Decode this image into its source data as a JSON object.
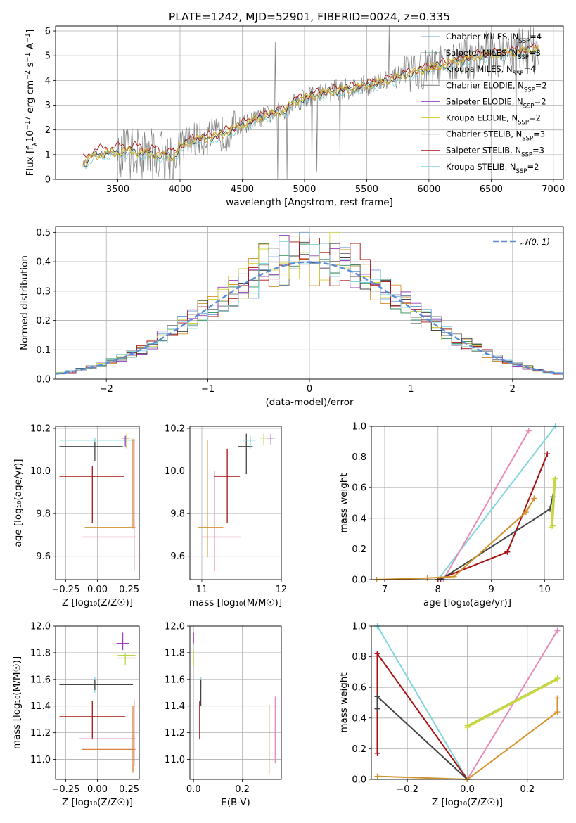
{
  "title": "PLATE=1242, MJD=52901, FIBERID=0024, z=0.335",
  "colors": {
    "Chabrier MILES": "#6f9fd6",
    "Salpeter MILES": "#2e8b57",
    "Kroupa MILES": "#d2932c",
    "Chabrier ELODIE": "#7a7a7a",
    "Salpeter ELODIE": "#9b3fc0",
    "Kroupa ELODIE": "#d4d43a",
    "Chabrier STELIB": "#444444",
    "Salpeter STELIB": "#aa1111",
    "Kroupa STELIB": "#7fd6df",
    "orange": "#d9803a",
    "pink": "#e78ab8",
    "lime": "#b8d64a",
    "normal": "#5b8bd6",
    "data": "#7f7f7f"
  },
  "chart_data": [
    {
      "id": "spectrum",
      "type": "line",
      "title": "PLATE=1242, MJD=52901, FIBERID=0024, z=0.335",
      "xlabel": "wavelength [Angstrom, rest frame]",
      "ylabel": "Flux [f",
      "ylabel_parts": [
        "Flux [f",
        "λ",
        "10",
        "−17",
        " erg cm",
        "−2",
        " s",
        "−1",
        " A",
        "−1",
        "]"
      ],
      "xlim": [
        3000,
        7080
      ],
      "ylim": [
        0,
        6.2
      ],
      "xticks": [
        3500,
        4000,
        4500,
        5000,
        5500,
        6000,
        6500,
        7000
      ],
      "yticks": [
        0,
        1,
        2,
        3,
        4,
        5,
        6
      ],
      "legend_position": "upper-right",
      "legend": [
        {
          "label": "Chabrier MILES, N",
          "sub": "SSP",
          "tail": "=4"
        },
        {
          "label": "Salpeter MILES, N",
          "sub": "SSP",
          "tail": "=3"
        },
        {
          "label": "Kroupa MILES, N",
          "sub": "SSP",
          "tail": "=4"
        },
        {
          "label": "Chabrier ELODIE, N",
          "sub": "SSP",
          "tail": "=2"
        },
        {
          "label": "Salpeter ELODIE, N",
          "sub": "SSP",
          "tail": "=2"
        },
        {
          "label": "Kroupa ELODIE, N",
          "sub": "SSP",
          "tail": "=2"
        },
        {
          "label": "Chabrier STELIB, N",
          "sub": "SSP",
          "tail": "=3"
        },
        {
          "label": "Salpeter STELIB, N",
          "sub": "SSP",
          "tail": "=3"
        },
        {
          "label": "Kroupa STELIB, N",
          "sub": "SSP",
          "tail": "=2"
        }
      ],
      "continuum_points": [
        [
          3220,
          0.6
        ],
        [
          3300,
          0.95
        ],
        [
          3400,
          1.05
        ],
        [
          3600,
          1.15
        ],
        [
          3800,
          1.0
        ],
        [
          3950,
          0.9
        ],
        [
          4000,
          1.3
        ],
        [
          4100,
          1.6
        ],
        [
          4300,
          1.75
        ],
        [
          4500,
          2.2
        ],
        [
          4700,
          2.6
        ],
        [
          4850,
          2.8
        ],
        [
          4900,
          3.1
        ],
        [
          5000,
          3.3
        ],
        [
          5200,
          3.55
        ],
        [
          5400,
          3.7
        ],
        [
          5600,
          3.9
        ],
        [
          5800,
          4.2
        ],
        [
          6000,
          4.5
        ],
        [
          6200,
          4.75
        ],
        [
          6400,
          5.0
        ],
        [
          6600,
          5.1
        ],
        [
          6800,
          5.2
        ],
        [
          6880,
          5.3
        ]
      ]
    },
    {
      "id": "residual-histogram",
      "type": "histogram",
      "xlabel": "(data-model)/error",
      "ylabel": "Normed distribution",
      "xlim": [
        -2.5,
        2.5
      ],
      "ylim": [
        0,
        0.52
      ],
      "xticks": [
        -2,
        -1,
        0,
        1,
        2
      ],
      "yticks": [
        0.0,
        0.1,
        0.2,
        0.3,
        0.4,
        0.5
      ],
      "bin_width": 0.1,
      "legend": "𝒩(0, 1)",
      "legend_position": "upper-right"
    },
    {
      "id": "age-vs-metallicity",
      "type": "errorbar",
      "xlabel": "Z [log₁₀(Z/Z☉)]",
      "ylabel": "age  [log₁₀(age/yr)]",
      "xlim": [
        -0.33,
        0.33
      ],
      "ylim": [
        9.49,
        10.21
      ],
      "xticks": [
        -0.25,
        0.0,
        0.25
      ],
      "yticks": [
        9.6,
        9.8,
        10.0,
        10.2
      ],
      "points": [
        {
          "model": "Kroupa STELIB",
          "x": -0.02,
          "xerr": [
            0.28,
            0.32
          ],
          "y": 10.145,
          "yerr": [
            0.03,
            0.01
          ]
        },
        {
          "model": "Chabrier STELIB",
          "x": -0.02,
          "xerr": [
            0.28,
            0.22
          ],
          "y": 10.115,
          "yerr": [
            0.07,
            0.02
          ]
        },
        {
          "model": "Salpeter STELIB",
          "x": -0.04,
          "xerr": [
            0.26,
            0.25
          ],
          "y": 9.975,
          "yerr": [
            0.22,
            0.05
          ]
        },
        {
          "model": "Kroupa MILES",
          "x": 0.3,
          "xerr": [
            0.4,
            0.0
          ],
          "y": 9.735,
          "yerr": [
            0.0,
            0.0
          ]
        },
        {
          "model": "pink",
          "x": 0.3,
          "xerr": [
            0.42,
            0.0
          ],
          "y": 9.69,
          "yerr": [
            0.0,
            0.0
          ]
        },
        {
          "model": "lime",
          "x": 0.23,
          "xerr": [
            0.04,
            0.06
          ],
          "y": 10.155,
          "yerr": [
            0.05,
            0.02
          ]
        },
        {
          "model": "Salpeter ELODIE",
          "x": 0.22,
          "xerr": [
            0.02,
            0.03
          ],
          "y": 10.155,
          "yerr": [
            0.04,
            0.01
          ]
        },
        {
          "model": "pink-vert",
          "x": 0.29,
          "xerr": [
            0,
            0
          ],
          "y": 9.85,
          "yerr": [
            0.32,
            0.3
          ]
        },
        {
          "model": "orange-vert",
          "x": 0.28,
          "xerr": [
            0,
            0
          ],
          "y": 9.93,
          "yerr": [
            0.2,
            0.22
          ]
        }
      ]
    },
    {
      "id": "age-vs-mass",
      "type": "errorbar",
      "xlabel": "mass [log₁₀(M/M☉)]",
      "ylabel": "",
      "xlim": [
        10.85,
        12.0
      ],
      "ylim": [
        9.49,
        10.21
      ],
      "xticks": [
        11,
        12
      ],
      "yticks": [
        9.6,
        9.8,
        10.0,
        10.2
      ],
      "points": [
        {
          "model": "Kroupa MILES",
          "x": 11.07,
          "xerr": [
            0.12,
            0.2
          ],
          "y": 9.735,
          "yerr": [
            0.14,
            0.41
          ]
        },
        {
          "model": "pink",
          "x": 11.16,
          "xerr": [
            0.16,
            0.33
          ],
          "y": 9.69,
          "yerr": [
            0.16,
            0.31
          ]
        },
        {
          "model": "Salpeter STELIB",
          "x": 11.32,
          "xerr": [
            0.17,
            0.16
          ],
          "y": 9.975,
          "yerr": [
            0.22,
            0.13
          ]
        },
        {
          "model": "Chabrier STELIB",
          "x": 11.56,
          "xerr": [
            0.1,
            0.08
          ],
          "y": 10.115,
          "yerr": [
            0.13,
            0.06
          ]
        },
        {
          "model": "Kroupa STELIB",
          "x": 11.61,
          "xerr": [
            0.1,
            0.06
          ],
          "y": 10.145,
          "yerr": [
            0.04,
            0.02
          ]
        },
        {
          "model": "lime",
          "x": 11.78,
          "xerr": [
            0.05,
            0.05
          ],
          "y": 10.155,
          "yerr": [
            0.03,
            0.02
          ]
        },
        {
          "model": "Salpeter ELODIE",
          "x": 11.87,
          "xerr": [
            0.05,
            0.05
          ],
          "y": 10.155,
          "yerr": [
            0.03,
            0.02
          ]
        }
      ]
    },
    {
      "id": "mass-weight-vs-age",
      "type": "line",
      "xlabel": "age  [log₁₀(age/yr)]",
      "ylabel": "mass weight",
      "xlim": [
        6.75,
        10.35
      ],
      "ylim": [
        0,
        1
      ],
      "xticks": [
        7,
        8,
        9,
        10
      ],
      "yticks": [
        0.0,
        0.2,
        0.4,
        0.6,
        0.8,
        1.0
      ],
      "series": [
        {
          "model": "Kroupa STELIB",
          "x": [
            8.0,
            10.2
          ],
          "y": [
            0.0,
            1.0
          ]
        },
        {
          "model": "pink",
          "x": [
            8.1,
            9.7
          ],
          "y": [
            0.0,
            0.97
          ]
        },
        {
          "model": "Salpeter STELIB",
          "x": [
            8.0,
            9.3,
            10.05
          ],
          "y": [
            0.0,
            0.18,
            0.82
          ]
        },
        {
          "model": "Chabrier STELIB",
          "x": [
            8.05,
            10.1,
            10.15
          ],
          "y": [
            0.0,
            0.46,
            0.54
          ]
        },
        {
          "model": "Kroupa MILES",
          "x": [
            6.85,
            7.8,
            8.3,
            9.65,
            9.8
          ],
          "y": [
            0.0,
            0.01,
            0.02,
            0.44,
            0.53
          ]
        },
        {
          "model": "lime",
          "x": [
            10.15,
            10.2
          ],
          "y": [
            0.35,
            0.66
          ]
        },
        {
          "model": "Kroupa ELODIE",
          "x": [
            10.12,
            10.18
          ],
          "y": [
            0.34,
            0.65
          ]
        }
      ]
    },
    {
      "id": "mass-vs-metallicity",
      "type": "errorbar",
      "xlabel": "Z [log₁₀(Z/Z☉)]",
      "ylabel": "mass [log₁₀(M/M☉)]",
      "xlim": [
        -0.33,
        0.33
      ],
      "ylim": [
        10.85,
        12.0
      ],
      "xticks": [
        -0.25,
        0.0,
        0.25
      ],
      "yticks": [
        11.0,
        11.2,
        11.4,
        11.6,
        11.8,
        12.0
      ],
      "points": [
        {
          "model": "Salpeter ELODIE",
          "x": 0.2,
          "xerr": [
            0.05,
            0.05
          ],
          "y": 11.87,
          "yerr": [
            0.05,
            0.08
          ]
        },
        {
          "model": "lime",
          "x": 0.22,
          "xerr": [
            0.06,
            0.08
          ],
          "y": 11.78,
          "yerr": [
            0.07,
            0.02
          ]
        },
        {
          "model": "Kroupa MILES",
          "x": 0.22,
          "xerr": [
            0.06,
            0.08
          ],
          "y": 11.76,
          "yerr": [
            0.0,
            0.0
          ]
        },
        {
          "model": "Kroupa STELIB",
          "x": -0.02,
          "xerr": [
            0.28,
            0.1
          ],
          "y": 11.56,
          "yerr": [
            0.06,
            0.06
          ]
        },
        {
          "model": "Chabrier STELIB",
          "x": -0.02,
          "xerr": [
            0.28,
            0.3
          ],
          "y": 11.56,
          "yerr": [
            0.04,
            0.04
          ]
        },
        {
          "model": "Salpeter STELIB",
          "x": -0.04,
          "xerr": [
            0.26,
            0.26
          ],
          "y": 11.32,
          "yerr": [
            0.17,
            0.12
          ]
        },
        {
          "model": "pink",
          "x": 0.08,
          "xerr": [
            0.22,
            0.22
          ],
          "y": 11.155,
          "yerr": [
            0.0,
            0.0
          ]
        },
        {
          "model": "orange",
          "x": 0.1,
          "xerr": [
            0.22,
            0.2
          ],
          "y": 11.075,
          "yerr": [
            0.0,
            0.0
          ]
        },
        {
          "model": "pink-vert",
          "x": 0.29,
          "xerr": [
            0,
            0
          ],
          "y": 11.2,
          "yerr": [
            0.25,
            0.25
          ]
        },
        {
          "model": "orange-vert",
          "x": 0.28,
          "xerr": [
            0,
            0
          ],
          "y": 11.15,
          "yerr": [
            0.25,
            0.25
          ]
        }
      ]
    },
    {
      "id": "mass-vs-ebv",
      "type": "errorbar",
      "xlabel": "E(B-V)",
      "ylabel": "",
      "xlim": [
        -0.015,
        0.36
      ],
      "ylim": [
        10.85,
        12.0
      ],
      "xticks": [
        0.0,
        0.2
      ],
      "yticks": [
        11.0,
        11.2,
        11.4,
        11.6,
        11.8,
        12.0
      ],
      "points": [
        {
          "model": "Salpeter ELODIE",
          "x": 0.0,
          "xerr": [
            0,
            0
          ],
          "y": 11.87,
          "yerr": [
            0.0,
            0.08
          ]
        },
        {
          "model": "lime",
          "x": 0.0,
          "xerr": [
            0,
            0
          ],
          "y": 11.78,
          "yerr": [
            0.08,
            0.04
          ]
        },
        {
          "model": "Kroupa STELIB",
          "x": 0.03,
          "xerr": [
            0,
            0
          ],
          "y": 11.56,
          "yerr": [
            0.02,
            0.06
          ]
        },
        {
          "model": "Chabrier STELIB",
          "x": 0.03,
          "xerr": [
            0,
            0
          ],
          "y": 11.56,
          "yerr": [
            0.16,
            0.04
          ]
        },
        {
          "model": "Salpeter STELIB",
          "x": 0.025,
          "xerr": [
            0,
            0
          ],
          "y": 11.32,
          "yerr": [
            0.17,
            0.12
          ]
        },
        {
          "model": "orange",
          "x": 0.31,
          "xerr": [
            0,
            0
          ],
          "y": 11.15,
          "yerr": [
            0.26,
            0.26
          ]
        },
        {
          "model": "pink",
          "x": 0.335,
          "xerr": [
            0,
            0
          ],
          "y": 11.22,
          "yerr": [
            0.25,
            0.25
          ]
        }
      ]
    },
    {
      "id": "mass-weight-vs-metallicity",
      "type": "line",
      "xlabel": "Z [log₁₀(Z/Z☉)]",
      "ylabel": "mass weight",
      "xlim": [
        -0.32,
        0.32
      ],
      "ylim": [
        0,
        1
      ],
      "xticks": [
        -0.2,
        0.0,
        0.2
      ],
      "yticks": [
        0.0,
        0.2,
        0.4,
        0.6,
        0.8,
        1.0
      ],
      "series": [
        {
          "model": "Kroupa STELIB",
          "x": [
            -0.3,
            0.0
          ],
          "y": [
            1.0,
            0.0
          ]
        },
        {
          "model": "Salpeter STELIB",
          "x": [
            -0.3,
            -0.3,
            0.0
          ],
          "y": [
            0.17,
            0.82,
            0.0
          ]
        },
        {
          "model": "Chabrier STELIB",
          "x": [
            -0.3,
            -0.3,
            0.0
          ],
          "y": [
            0.46,
            0.54,
            0.0
          ]
        },
        {
          "model": "pink",
          "x": [
            0.0,
            0.3
          ],
          "y": [
            0.0,
            0.97
          ]
        },
        {
          "model": "Kroupa MILES",
          "x": [
            -0.3,
            0.0,
            0.3,
            0.3
          ],
          "y": [
            0.02,
            0.0,
            0.44,
            0.53
          ]
        },
        {
          "model": "lime",
          "x": [
            0.0,
            0.3
          ],
          "y": [
            0.35,
            0.66
          ]
        },
        {
          "model": "Kroupa ELODIE",
          "x": [
            0.0,
            0.3
          ],
          "y": [
            0.34,
            0.65
          ]
        }
      ]
    }
  ]
}
